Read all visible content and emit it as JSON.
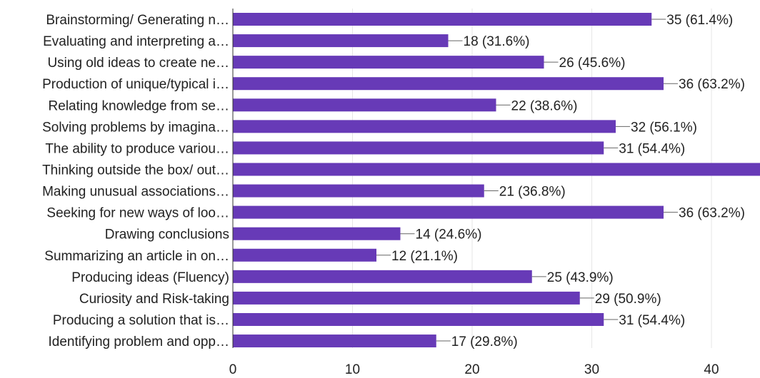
{
  "chart_data": {
    "type": "bar",
    "orientation": "horizontal",
    "categories": [
      "Brainstorming/ Generating n…",
      "Evaluating and interpreting a…",
      "Using old ideas to create ne…",
      "Production of unique/typical i…",
      "Relating knowledge from se…",
      "Solving problems by imagina…",
      "The ability to produce variou…",
      "Thinking outside the box/ out…",
      "Making unusual associations…",
      "Seeking for new ways of loo…",
      "Drawing conclusions",
      "Summarizing an article in on…",
      "Producing ideas (Fluency)",
      "Curiosity and Risk-taking",
      "Producing a solution that is…",
      "Identifying problem and opp…"
    ],
    "values": [
      35,
      18,
      26,
      36,
      22,
      32,
      31,
      45,
      21,
      36,
      14,
      12,
      25,
      29,
      31,
      17
    ],
    "data_labels": [
      "35 (61.4%)",
      "18 (31.6%)",
      "26 (45.6%)",
      "36 (63.2%)",
      "22 (38.6%)",
      "32 (56.1%)",
      "31 (54.4%)",
      "",
      "21 (36.8%)",
      "36 (63.2%)",
      "14 (24.6%)",
      "12 (21.1%)",
      "25 (43.9%)",
      "29 (50.9%)",
      "31 (54.4%)",
      "17 (29.8%)"
    ],
    "x_ticks": [
      "0",
      "10",
      "20",
      "30",
      "40"
    ],
    "xlim": [
      0,
      44
    ],
    "bar_color": "#673ab7",
    "grid": true
  }
}
